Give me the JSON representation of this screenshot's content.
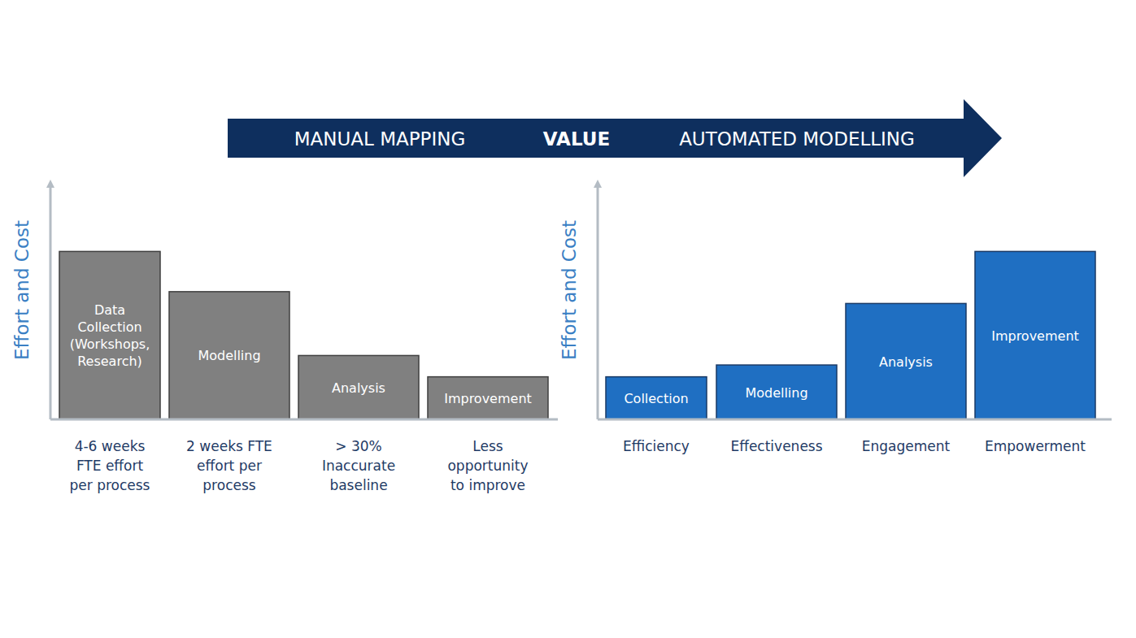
{
  "banner": {
    "left": "MANUAL MAPPING",
    "center": "VALUE",
    "right": "AUTOMATED MODELLING"
  },
  "chart_data": [
    {
      "type": "bar",
      "y_label": "Effort and Cost",
      "categories": [
        "4-6 weeks\nFTE effort\nper process",
        "2 weeks FTE\neffort per\nprocess",
        "> 30%\nInaccurate\nbaseline",
        "Less\nopportunity\nto improve"
      ],
      "values": [
        71,
        54,
        27,
        18
      ],
      "annotations": [
        "Data\nCollection\n(Workshops,\nResearch)",
        "Modelling",
        "Analysis",
        "Improvement"
      ],
      "color": "#808080",
      "ylim": [
        0,
        100
      ],
      "tick_labels": "x"
    },
    {
      "type": "bar",
      "y_label": "Effort and Cost",
      "categories": [
        "Efficiency",
        "Effectiveness",
        "Engagement",
        "Empowerment"
      ],
      "values": [
        18,
        23,
        49,
        71
      ],
      "annotations": [
        "Collection",
        "Modelling",
        "Analysis",
        "Improvement"
      ],
      "color": "#1f6fc2",
      "ylim": [
        0,
        100
      ],
      "tick_labels": "x"
    }
  ]
}
